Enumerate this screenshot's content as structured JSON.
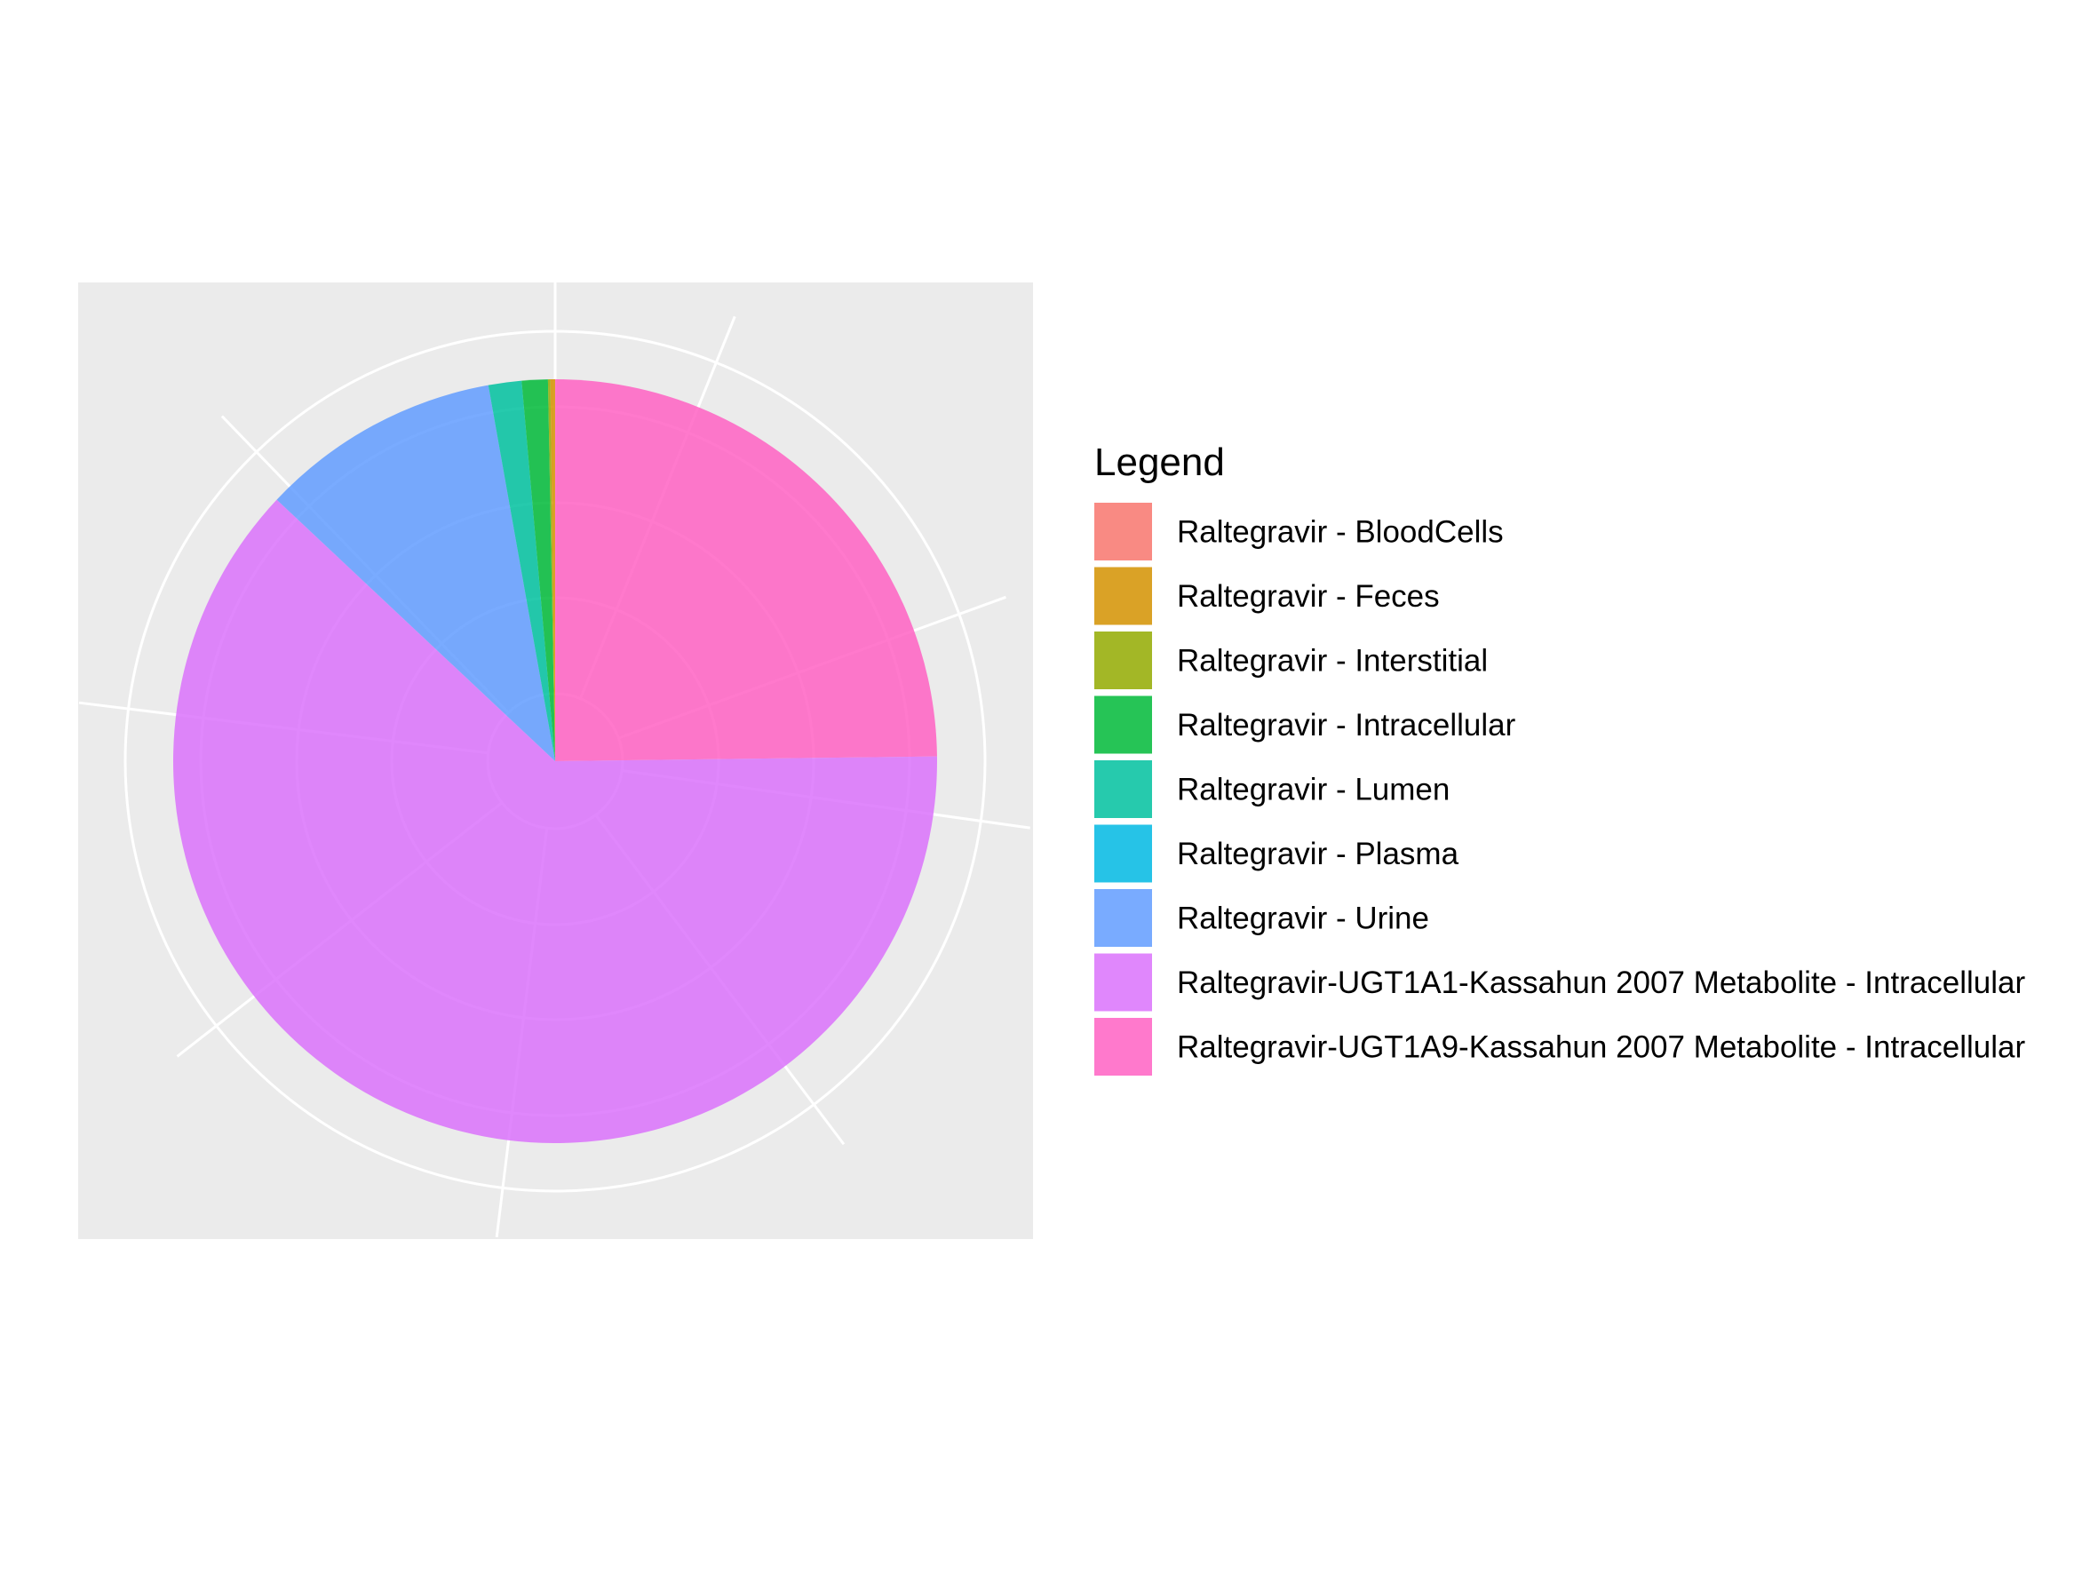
{
  "chart_data": {
    "type": "pie",
    "title": "",
    "legend": {
      "title": "Legend",
      "placement": "right"
    },
    "grid": true,
    "panel_background": "#EBEBEB",
    "grid_color": "#FFFFFF",
    "start_angle": "12 o'clock",
    "direction": "clockwise",
    "series": [
      {
        "name": "Raltegravir - BloodCells",
        "value": 0.0,
        "color": "#F8766D"
      },
      {
        "name": "Raltegravir - Feces",
        "value": 0.2,
        "color": "#D39200"
      },
      {
        "name": "Raltegravir - Interstitial",
        "value": 0.1,
        "color": "#93AA00"
      },
      {
        "name": "Raltegravir - Intracellular",
        "value": 1.1,
        "color": "#00BA38"
      },
      {
        "name": "Raltegravir - Lumen",
        "value": 1.4,
        "color": "#00C19F"
      },
      {
        "name": "Raltegravir - Plasma",
        "value": 0.0,
        "color": "#00B9E3"
      },
      {
        "name": "Raltegravir - Urine",
        "value": 10.2,
        "color": "#619CFF"
      },
      {
        "name": "Raltegravir-UGT1A1-Kassahun 2007 Metabolite - Intracellular",
        "value": 62.2,
        "color": "#DB72FB"
      },
      {
        "name": "Raltegravir-UGT1A9-Kassahun 2007 Metabolite - Intracellular",
        "value": 24.8,
        "color": "#FF61C3"
      }
    ]
  }
}
